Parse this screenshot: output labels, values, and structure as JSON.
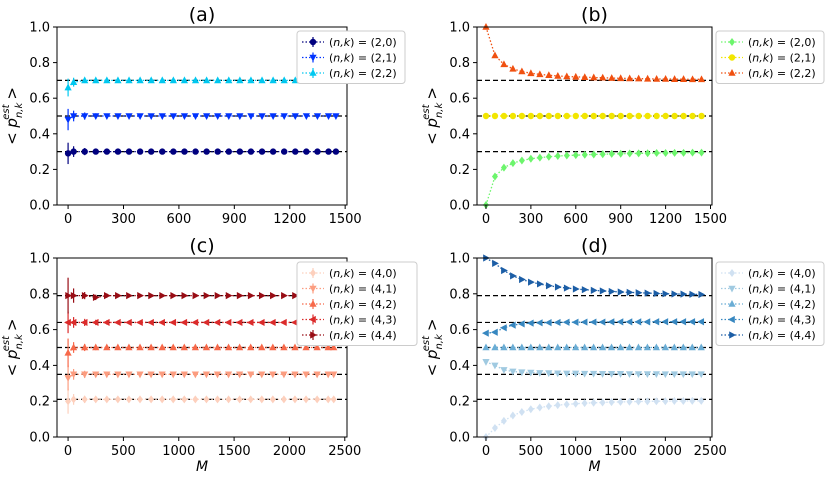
{
  "chart_data": [
    {
      "type": "line",
      "title": "(a)",
      "xlabel": "",
      "ylabel": "< p_{n,k}^{est} >",
      "xlim": [
        -60,
        1510
      ],
      "ylim": [
        0.0,
        1.0
      ],
      "xticks": [
        0,
        300,
        600,
        900,
        1200,
        1500
      ],
      "yticks": [
        0.0,
        0.2,
        0.4,
        0.6,
        0.8,
        1.0
      ],
      "grid": false,
      "legend_position": "outside-right",
      "reference_lines": [
        0.3,
        0.5,
        0.7
      ],
      "x": [
        0,
        30,
        90,
        150,
        210,
        270,
        330,
        390,
        450,
        510,
        570,
        630,
        690,
        750,
        810,
        870,
        930,
        990,
        1050,
        1110,
        1170,
        1230,
        1290,
        1350,
        1410,
        1450
      ],
      "series": [
        {
          "name": "(n,k) = (2,0)",
          "color": "#00007f",
          "marker": "circle",
          "values": [
            0.29,
            0.3,
            0.3,
            0.3,
            0.3,
            0.3,
            0.3,
            0.3,
            0.3,
            0.3,
            0.3,
            0.3,
            0.3,
            0.3,
            0.3,
            0.3,
            0.3,
            0.3,
            0.3,
            0.3,
            0.3,
            0.3,
            0.3,
            0.3,
            0.3,
            0.3
          ],
          "errors": [
            0.06,
            0.03,
            0.02,
            0.015,
            0.012,
            0.01,
            0.01,
            0.008,
            0.008,
            0.007,
            0.006,
            0.006,
            0.006,
            0.005,
            0.005,
            0.005,
            0.005,
            0.005,
            0.004,
            0.004,
            0.004,
            0.004,
            0.004,
            0.004,
            0.004,
            0.004
          ]
        },
        {
          "name": "(n,k) = (2,1)",
          "color": "#0033ff",
          "marker": "triangle-down",
          "values": [
            0.48,
            0.5,
            0.5,
            0.5,
            0.5,
            0.5,
            0.5,
            0.5,
            0.5,
            0.5,
            0.5,
            0.5,
            0.5,
            0.5,
            0.5,
            0.5,
            0.5,
            0.5,
            0.5,
            0.5,
            0.5,
            0.5,
            0.5,
            0.5,
            0.5,
            0.5
          ],
          "errors": [
            0.06,
            0.03,
            0.02,
            0.015,
            0.012,
            0.01,
            0.01,
            0.008,
            0.008,
            0.007,
            0.006,
            0.006,
            0.006,
            0.005,
            0.005,
            0.005,
            0.005,
            0.005,
            0.004,
            0.004,
            0.004,
            0.004,
            0.004,
            0.004,
            0.004,
            0.004
          ]
        },
        {
          "name": "(n,k) = (2,2)",
          "color": "#00c8f0",
          "marker": "triangle-up",
          "values": [
            0.66,
            0.69,
            0.7,
            0.7,
            0.7,
            0.7,
            0.7,
            0.7,
            0.7,
            0.7,
            0.7,
            0.7,
            0.7,
            0.7,
            0.7,
            0.7,
            0.7,
            0.7,
            0.7,
            0.7,
            0.7,
            0.7,
            0.7,
            0.7,
            0.7,
            0.7
          ],
          "errors": [
            0.05,
            0.025,
            0.015,
            0.012,
            0.01,
            0.01,
            0.008,
            0.008,
            0.007,
            0.006,
            0.006,
            0.006,
            0.005,
            0.005,
            0.005,
            0.005,
            0.005,
            0.004,
            0.004,
            0.004,
            0.004,
            0.004,
            0.004,
            0.004,
            0.004,
            0.004
          ]
        }
      ]
    },
    {
      "type": "line",
      "title": "(b)",
      "xlabel": "",
      "ylabel": "< p_{n,k}^{est} >",
      "xlim": [
        -60,
        1510
      ],
      "ylim": [
        0.0,
        1.0
      ],
      "xticks": [
        0,
        300,
        600,
        900,
        1200,
        1500
      ],
      "yticks": [
        0.0,
        0.2,
        0.4,
        0.6,
        0.8,
        1.0
      ],
      "grid": false,
      "legend_position": "outside-right",
      "reference_lines": [
        0.3,
        0.5,
        0.7
      ],
      "x": [
        0,
        60,
        120,
        180,
        240,
        300,
        360,
        420,
        480,
        540,
        600,
        660,
        720,
        780,
        840,
        900,
        960,
        1020,
        1080,
        1140,
        1200,
        1260,
        1320,
        1380,
        1440
      ],
      "series": [
        {
          "name": "(n,k) = (2,0)",
          "color": "#6cf56c",
          "marker": "diamond",
          "values": [
            0.0,
            0.16,
            0.21,
            0.235,
            0.25,
            0.26,
            0.266,
            0.271,
            0.275,
            0.278,
            0.28,
            0.282,
            0.284,
            0.285,
            0.287,
            0.288,
            0.289,
            0.29,
            0.291,
            0.292,
            0.292,
            0.293,
            0.293,
            0.294,
            0.294
          ]
        },
        {
          "name": "(n,k) = (2,1)",
          "color": "#f2e600",
          "marker": "circle",
          "values": [
            0.5,
            0.5,
            0.5,
            0.5,
            0.5,
            0.5,
            0.5,
            0.5,
            0.5,
            0.5,
            0.5,
            0.5,
            0.5,
            0.5,
            0.5,
            0.5,
            0.5,
            0.5,
            0.5,
            0.5,
            0.5,
            0.5,
            0.5,
            0.5,
            0.5
          ]
        },
        {
          "name": "(n,k) = (2,2)",
          "color": "#f05010",
          "marker": "triangle-up",
          "values": [
            1.0,
            0.84,
            0.79,
            0.765,
            0.75,
            0.74,
            0.734,
            0.729,
            0.725,
            0.722,
            0.72,
            0.718,
            0.716,
            0.715,
            0.713,
            0.712,
            0.711,
            0.71,
            0.709,
            0.708,
            0.708,
            0.707,
            0.707,
            0.706,
            0.706
          ]
        }
      ]
    },
    {
      "type": "line",
      "title": "(c)",
      "xlabel": "M",
      "ylabel": "< p_{n,k}^{est} >",
      "xlim": [
        -100,
        2520
      ],
      "ylim": [
        0.0,
        1.0
      ],
      "xticks": [
        0,
        500,
        1000,
        1500,
        2000,
        2500
      ],
      "yticks": [
        0.0,
        0.2,
        0.4,
        0.6,
        0.8,
        1.0
      ],
      "grid": false,
      "legend_position": "outside-right",
      "reference_lines": [
        0.21,
        0.35,
        0.5,
        0.64,
        0.79
      ],
      "x": [
        0,
        50,
        150,
        250,
        350,
        450,
        550,
        650,
        750,
        850,
        950,
        1050,
        1150,
        1250,
        1350,
        1450,
        1550,
        1650,
        1750,
        1850,
        1950,
        2050,
        2150,
        2250,
        2350,
        2400
      ],
      "series": [
        {
          "name": "(n,k) = (4,0)",
          "color": "#fdd0bd",
          "marker": "diamond",
          "values": [
            0.2,
            0.21,
            0.21,
            0.21,
            0.21,
            0.21,
            0.21,
            0.21,
            0.21,
            0.21,
            0.21,
            0.21,
            0.21,
            0.21,
            0.21,
            0.21,
            0.21,
            0.21,
            0.21,
            0.21,
            0.21,
            0.21,
            0.21,
            0.21,
            0.21,
            0.21
          ],
          "errors": [
            0.07,
            0.03,
            0.02,
            0.015,
            0.012,
            0.01,
            0.01,
            0.008,
            0.008,
            0.007,
            0.006,
            0.006,
            0.006,
            0.005,
            0.005,
            0.005,
            0.005,
            0.005,
            0.004,
            0.004,
            0.004,
            0.004,
            0.004,
            0.004,
            0.004,
            0.004
          ]
        },
        {
          "name": "(n,k) = (4,1)",
          "color": "#fc9d80",
          "marker": "triangle-down",
          "values": [
            0.33,
            0.35,
            0.35,
            0.35,
            0.35,
            0.35,
            0.35,
            0.35,
            0.35,
            0.35,
            0.35,
            0.35,
            0.35,
            0.35,
            0.35,
            0.35,
            0.35,
            0.35,
            0.35,
            0.35,
            0.35,
            0.35,
            0.35,
            0.35,
            0.35,
            0.35
          ],
          "errors": [
            0.07,
            0.03,
            0.02,
            0.015,
            0.012,
            0.01,
            0.01,
            0.008,
            0.008,
            0.007,
            0.006,
            0.006,
            0.006,
            0.005,
            0.005,
            0.005,
            0.005,
            0.005,
            0.004,
            0.004,
            0.004,
            0.004,
            0.004,
            0.004,
            0.004,
            0.004
          ]
        },
        {
          "name": "(n,k) = (4,2)",
          "color": "#f7694a",
          "marker": "triangle-up",
          "values": [
            0.47,
            0.5,
            0.5,
            0.5,
            0.5,
            0.5,
            0.5,
            0.5,
            0.5,
            0.5,
            0.5,
            0.5,
            0.5,
            0.5,
            0.5,
            0.5,
            0.5,
            0.5,
            0.5,
            0.5,
            0.5,
            0.5,
            0.5,
            0.5,
            0.5,
            0.5
          ],
          "errors": [
            0.08,
            0.03,
            0.02,
            0.015,
            0.012,
            0.01,
            0.01,
            0.008,
            0.008,
            0.007,
            0.006,
            0.006,
            0.006,
            0.005,
            0.005,
            0.005,
            0.005,
            0.005,
            0.004,
            0.004,
            0.004,
            0.004,
            0.004,
            0.004,
            0.004,
            0.004
          ]
        },
        {
          "name": "(n,k) = (4,3)",
          "color": "#db2b2b",
          "marker": "triangle-left",
          "values": [
            0.64,
            0.64,
            0.64,
            0.64,
            0.64,
            0.64,
            0.64,
            0.64,
            0.64,
            0.64,
            0.64,
            0.64,
            0.64,
            0.64,
            0.64,
            0.64,
            0.64,
            0.64,
            0.64,
            0.64,
            0.64,
            0.64,
            0.64,
            0.64,
            0.64,
            0.64
          ],
          "errors": [
            0.06,
            0.03,
            0.02,
            0.015,
            0.012,
            0.01,
            0.01,
            0.008,
            0.008,
            0.007,
            0.006,
            0.006,
            0.006,
            0.005,
            0.005,
            0.005,
            0.005,
            0.005,
            0.004,
            0.004,
            0.004,
            0.004,
            0.004,
            0.004,
            0.004,
            0.004
          ]
        },
        {
          "name": "(n,k) = (4,4)",
          "color": "#980c14",
          "marker": "triangle-right",
          "values": [
            0.79,
            0.79,
            0.79,
            0.78,
            0.79,
            0.79,
            0.79,
            0.79,
            0.79,
            0.79,
            0.79,
            0.79,
            0.79,
            0.79,
            0.79,
            0.79,
            0.79,
            0.79,
            0.79,
            0.79,
            0.79,
            0.79,
            0.79,
            0.79,
            0.79,
            0.79
          ],
          "errors": [
            0.1,
            0.04,
            0.02,
            0.015,
            0.012,
            0.01,
            0.01,
            0.008,
            0.008,
            0.007,
            0.006,
            0.006,
            0.006,
            0.005,
            0.005,
            0.005,
            0.005,
            0.005,
            0.004,
            0.004,
            0.004,
            0.004,
            0.004,
            0.004,
            0.004,
            0.004
          ]
        }
      ]
    },
    {
      "type": "line",
      "title": "(d)",
      "xlabel": "M",
      "ylabel": "< p_{n,k}^{est} >",
      "xlim": [
        -100,
        2520
      ],
      "ylim": [
        0.0,
        1.0
      ],
      "xticks": [
        0,
        500,
        1000,
        1500,
        2000,
        2500
      ],
      "yticks": [
        0.0,
        0.2,
        0.4,
        0.6,
        0.8,
        1.0
      ],
      "grid": false,
      "legend_position": "outside-right",
      "reference_lines": [
        0.21,
        0.35,
        0.5,
        0.64,
        0.79
      ],
      "x": [
        0,
        100,
        200,
        300,
        400,
        500,
        600,
        700,
        800,
        900,
        1000,
        1100,
        1200,
        1300,
        1400,
        1500,
        1600,
        1700,
        1800,
        1900,
        2000,
        2100,
        2200,
        2300,
        2400
      ],
      "series": [
        {
          "name": "(n,k) = (4,0)",
          "color": "#d0e1f2",
          "marker": "diamond",
          "values": [
            0.0,
            0.05,
            0.09,
            0.12,
            0.14,
            0.155,
            0.165,
            0.172,
            0.178,
            0.182,
            0.186,
            0.189,
            0.191,
            0.193,
            0.195,
            0.196,
            0.197,
            0.198,
            0.199,
            0.2,
            0.2,
            0.201,
            0.201,
            0.202,
            0.202
          ]
        },
        {
          "name": "(n,k) = (4,1)",
          "color": "#a0cae1",
          "marker": "triangle-down",
          "values": [
            0.42,
            0.4,
            0.375,
            0.366,
            0.362,
            0.36,
            0.358,
            0.357,
            0.356,
            0.355,
            0.355,
            0.354,
            0.354,
            0.353,
            0.353,
            0.353,
            0.352,
            0.352,
            0.352,
            0.352,
            0.351,
            0.351,
            0.351,
            0.351,
            0.351
          ]
        },
        {
          "name": "(n,k) = (4,2)",
          "color": "#6aadd5",
          "marker": "triangle-up",
          "values": [
            0.5,
            0.5,
            0.5,
            0.5,
            0.5,
            0.5,
            0.5,
            0.5,
            0.5,
            0.5,
            0.5,
            0.5,
            0.5,
            0.5,
            0.5,
            0.5,
            0.5,
            0.5,
            0.5,
            0.5,
            0.5,
            0.5,
            0.5,
            0.5,
            0.5
          ]
        },
        {
          "name": "(n,k) = (4,3)",
          "color": "#3787c0",
          "marker": "triangle-left",
          "values": [
            0.58,
            0.585,
            0.61,
            0.625,
            0.632,
            0.636,
            0.638,
            0.639,
            0.64,
            0.641,
            0.641,
            0.642,
            0.642,
            0.642,
            0.643,
            0.643,
            0.643,
            0.643,
            0.643,
            0.644,
            0.644,
            0.644,
            0.644,
            0.644,
            0.644
          ]
        },
        {
          "name": "(n,k) = (4,4)",
          "color": "#1c5ea6",
          "marker": "triangle-right",
          "values": [
            1.0,
            0.97,
            0.93,
            0.9,
            0.88,
            0.865,
            0.855,
            0.845,
            0.838,
            0.832,
            0.827,
            0.823,
            0.819,
            0.816,
            0.813,
            0.81,
            0.808,
            0.806,
            0.804,
            0.802,
            0.8,
            0.799,
            0.798,
            0.797,
            0.796
          ]
        }
      ]
    }
  ]
}
